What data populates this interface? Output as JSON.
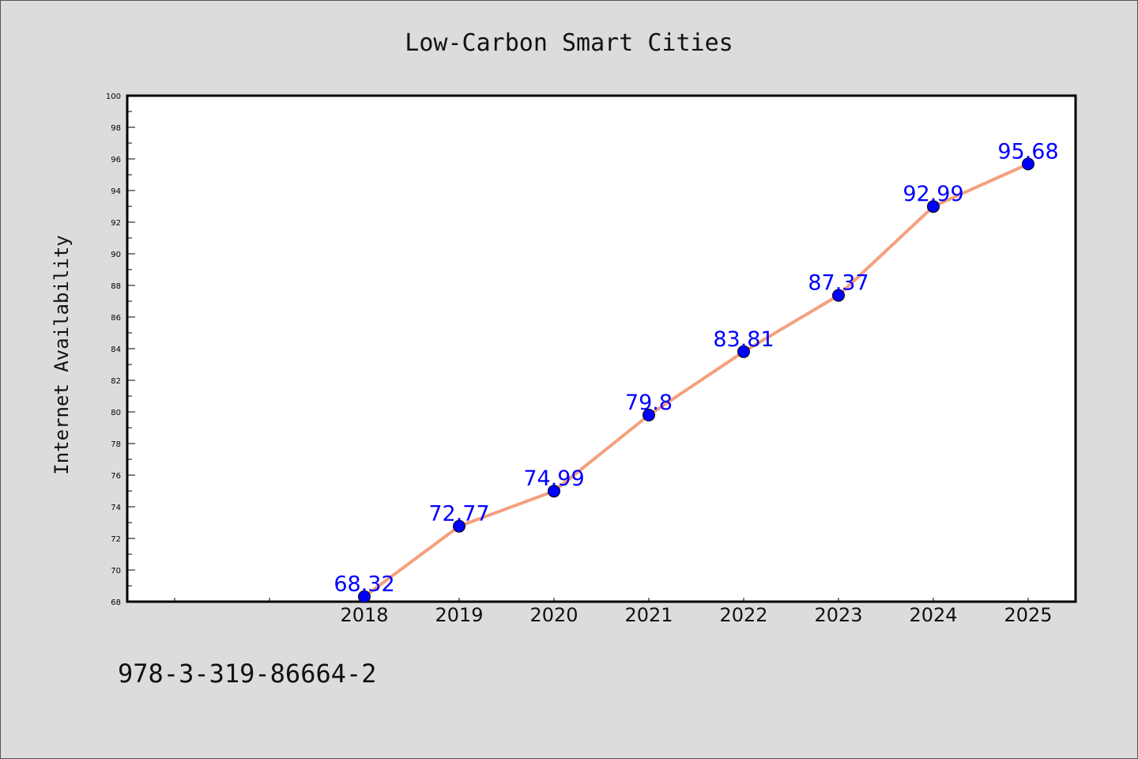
{
  "chart_data": {
    "type": "line",
    "title": "Low-Carbon Smart Cities",
    "xlabel": "",
    "ylabel": "Internet Availability",
    "categories": [
      "2018",
      "2019",
      "2020",
      "2021",
      "2022",
      "2023",
      "2024",
      "2025"
    ],
    "x_axis_slots": 10,
    "series": [
      {
        "values": [
          68.32,
          72.77,
          74.99,
          79.8,
          83.81,
          87.37,
          92.99,
          95.68
        ],
        "labels": [
          "68.32",
          "72.77",
          "74.99",
          "79.8",
          "83.81",
          "87.37",
          "92.99",
          "95.68"
        ],
        "line_color": "#f4a07e",
        "marker_color": "#0000ff"
      }
    ],
    "ylim": [
      68,
      100
    ],
    "yticks": [
      "68",
      "70",
      "72",
      "74",
      "76",
      "78",
      "80",
      "82",
      "84",
      "86",
      "88",
      "90",
      "92",
      "94",
      "96",
      "98",
      "100"
    ],
    "grid": false,
    "legend": "none"
  },
  "footer": {
    "code": "978-3-319-86664-2"
  }
}
